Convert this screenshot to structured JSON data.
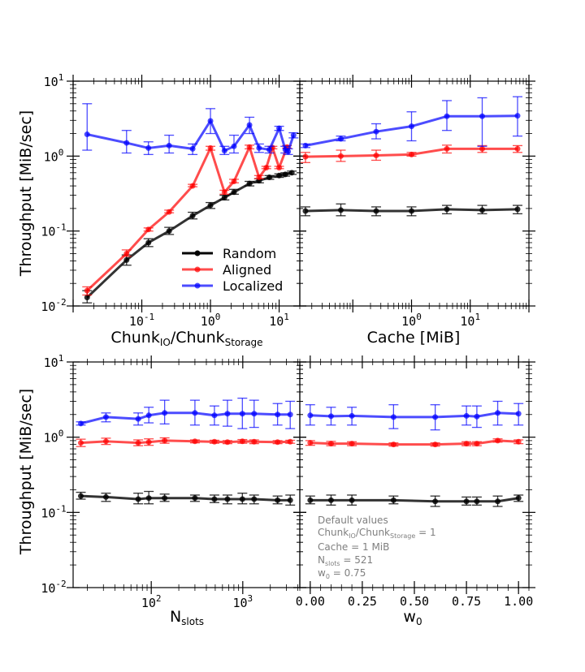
{
  "chart_data": [
    {
      "type": "line",
      "xscale": "log",
      "yscale": "log",
      "xlim": [
        0.01,
        20
      ],
      "ylim": [
        0.01,
        10
      ],
      "xlabel": "Chunk_IO/Chunk_Storage",
      "ylabel": "Throughput [MiB/sec]",
      "xticks": [
        "10^-1",
        "10^0",
        "10^1"
      ],
      "yticks": [
        "10^-2",
        "10^-1",
        "10^0",
        "10^1"
      ],
      "legend": "center-bottom",
      "series": [
        {
          "name": "Random",
          "color": "#000000",
          "points": [
            [
              0.016,
              0.013,
              0.011,
              0.016
            ],
            [
              0.06,
              0.041,
              0.035,
              0.048
            ],
            [
              0.125,
              0.07,
              0.062,
              0.079
            ],
            [
              0.25,
              0.1,
              0.09,
              0.112
            ],
            [
              0.55,
              0.16,
              0.145,
              0.178
            ],
            [
              1.0,
              0.22,
              0.2,
              0.24
            ],
            [
              1.6,
              0.28,
              0.26,
              0.3
            ],
            [
              2.2,
              0.33,
              0.31,
              0.36
            ],
            [
              3.7,
              0.43,
              0.4,
              0.46
            ],
            [
              5.1,
              0.47,
              0.44,
              0.5
            ],
            [
              7.2,
              0.52,
              0.49,
              0.55
            ],
            [
              10.0,
              0.55,
              0.52,
              0.58
            ],
            [
              12.3,
              0.57,
              0.54,
              0.6
            ],
            [
              15.3,
              0.6,
              0.57,
              0.63
            ]
          ]
        },
        {
          "name": "Aligned",
          "color": "#ff0000",
          "points": [
            [
              0.016,
              0.016,
              0.014,
              0.018
            ],
            [
              0.06,
              0.05,
              0.046,
              0.056
            ],
            [
              0.125,
              0.105,
              0.1,
              0.11
            ],
            [
              0.25,
              0.18,
              0.175,
              0.19
            ],
            [
              0.55,
              0.4,
              0.39,
              0.42
            ],
            [
              1.0,
              1.28,
              1.2,
              1.35
            ],
            [
              1.6,
              0.33,
              0.31,
              0.35
            ],
            [
              2.2,
              0.46,
              0.44,
              0.49
            ],
            [
              3.7,
              1.32,
              1.25,
              1.4
            ],
            [
              5.1,
              0.52,
              0.5,
              0.55
            ],
            [
              6.5,
              0.7,
              0.68,
              0.73
            ],
            [
              8.0,
              1.3,
              1.25,
              1.35
            ],
            [
              10.0,
              0.7,
              0.68,
              0.73
            ],
            [
              13.0,
              1.32,
              1.28,
              1.38
            ]
          ]
        },
        {
          "name": "Localized",
          "color": "#0000ff",
          "points": [
            [
              0.016,
              1.95,
              1.2,
              5.0
            ],
            [
              0.06,
              1.5,
              1.1,
              2.2
            ],
            [
              0.125,
              1.28,
              1.05,
              1.55
            ],
            [
              0.25,
              1.38,
              1.1,
              1.9
            ],
            [
              0.55,
              1.25,
              1.05,
              1.45
            ],
            [
              1.0,
              2.95,
              2.0,
              4.3
            ],
            [
              1.6,
              1.18,
              1.05,
              1.35
            ],
            [
              2.2,
              1.35,
              1.1,
              1.9
            ],
            [
              3.7,
              2.6,
              2.0,
              3.3
            ],
            [
              5.1,
              1.28,
              1.12,
              1.45
            ],
            [
              7.2,
              1.22,
              1.1,
              1.35
            ],
            [
              10.0,
              2.35,
              2.2,
              2.5
            ],
            [
              12.3,
              1.22,
              1.1,
              1.35
            ],
            [
              13.5,
              1.15,
              1.05,
              1.25
            ],
            [
              16.2,
              1.9,
              1.75,
              2.05
            ]
          ]
        }
      ]
    },
    {
      "type": "line",
      "xscale": "log",
      "yscale": "log",
      "xlim": [
        0.0125,
        100
      ],
      "ylim": [
        0.01,
        10
      ],
      "xlabel": "Cache [MiB]",
      "xticks": [
        "10^0",
        "10^1"
      ],
      "series": [
        {
          "name": "Random",
          "color": "#000000",
          "points": [
            [
              0.0156,
              0.185,
              0.16,
              0.21
            ],
            [
              0.0625,
              0.19,
              0.16,
              0.23
            ],
            [
              0.25,
              0.185,
              0.16,
              0.21
            ],
            [
              1.0,
              0.185,
              0.16,
              0.21
            ],
            [
              4.0,
              0.195,
              0.17,
              0.22
            ],
            [
              16.0,
              0.19,
              0.17,
              0.22
            ],
            [
              64.0,
              0.195,
              0.17,
              0.22
            ]
          ]
        },
        {
          "name": "Aligned",
          "color": "#ff0000",
          "points": [
            [
              0.0156,
              0.98,
              0.82,
              1.12
            ],
            [
              0.0625,
              1.0,
              0.85,
              1.2
            ],
            [
              0.25,
              1.02,
              0.88,
              1.2
            ],
            [
              1.0,
              1.05,
              1.0,
              1.12
            ],
            [
              4.0,
              1.25,
              1.1,
              1.4
            ],
            [
              16.0,
              1.25,
              1.12,
              1.38
            ],
            [
              64.0,
              1.25,
              1.12,
              1.38
            ]
          ]
        },
        {
          "name": "Localized",
          "color": "#0000ff",
          "points": [
            [
              0.0156,
              1.38,
              1.3,
              1.45
            ],
            [
              0.0625,
              1.7,
              1.6,
              1.85
            ],
            [
              0.25,
              2.12,
              1.7,
              2.7
            ],
            [
              1.0,
              2.5,
              1.6,
              3.9
            ],
            [
              4.0,
              3.4,
              2.2,
              5.5
            ],
            [
              16.0,
              3.4,
              1.35,
              6.0
            ],
            [
              64.0,
              3.45,
              1.85,
              6.2
            ]
          ]
        }
      ]
    },
    {
      "type": "line",
      "xscale": "log",
      "yscale": "log",
      "xlim": [
        14,
        4200
      ],
      "ylim": [
        0.01,
        10
      ],
      "xlabel": "N_slots",
      "ylabel": "Throughput [MiB/sec]",
      "xticks": [
        "10^2",
        "10^3"
      ],
      "yticks": [
        "10^-2",
        "10^-1",
        "10^0",
        "10^1"
      ],
      "series": [
        {
          "name": "Random",
          "color": "#000000",
          "points": [
            [
              17,
              0.165,
              0.15,
              0.185
            ],
            [
              32,
              0.16,
              0.14,
              0.18
            ],
            [
              72,
              0.15,
              0.13,
              0.18
            ],
            [
              94,
              0.155,
              0.13,
              0.19
            ],
            [
              140,
              0.155,
              0.14,
              0.175
            ],
            [
              300,
              0.155,
              0.14,
              0.17
            ],
            [
              490,
              0.15,
              0.135,
              0.17
            ],
            [
              680,
              0.15,
              0.13,
              0.17
            ],
            [
              990,
              0.15,
              0.13,
              0.18
            ],
            [
              1330,
              0.15,
              0.13,
              0.17
            ],
            [
              2400,
              0.145,
              0.13,
              0.165
            ],
            [
              3300,
              0.145,
              0.125,
              0.17
            ]
          ]
        },
        {
          "name": "Aligned",
          "color": "#ff0000",
          "points": [
            [
              17,
              0.84,
              0.75,
              0.94
            ],
            [
              32,
              0.88,
              0.8,
              0.97
            ],
            [
              72,
              0.84,
              0.77,
              0.92
            ],
            [
              94,
              0.86,
              0.78,
              0.95
            ],
            [
              140,
              0.9,
              0.83,
              0.98
            ],
            [
              300,
              0.88,
              0.84,
              0.92
            ],
            [
              490,
              0.87,
              0.83,
              0.91
            ],
            [
              680,
              0.86,
              0.82,
              0.9
            ],
            [
              990,
              0.88,
              0.83,
              0.93
            ],
            [
              1330,
              0.87,
              0.82,
              0.92
            ],
            [
              2400,
              0.86,
              0.82,
              0.9
            ],
            [
              3300,
              0.87,
              0.83,
              0.91
            ]
          ]
        },
        {
          "name": "Localized",
          "color": "#0000ff",
          "points": [
            [
              17,
              1.52,
              1.45,
              1.6
            ],
            [
              32,
              1.85,
              1.6,
              2.1
            ],
            [
              72,
              1.75,
              1.45,
              2.1
            ],
            [
              94,
              1.95,
              1.55,
              2.5
            ],
            [
              140,
              2.1,
              1.5,
              3.1
            ],
            [
              300,
              2.1,
              1.45,
              3.1
            ],
            [
              490,
              1.95,
              1.45,
              2.6
            ],
            [
              680,
              2.05,
              1.4,
              3.1
            ],
            [
              990,
              2.05,
              1.3,
              3.3
            ],
            [
              1330,
              2.05,
              1.35,
              3.1
            ],
            [
              2400,
              2.0,
              1.45,
              2.8
            ],
            [
              3300,
              2.0,
              1.3,
              3.0
            ]
          ]
        }
      ]
    },
    {
      "type": "line",
      "xscale": "linear",
      "yscale": "log",
      "xlim": [
        -0.05,
        1.05
      ],
      "ylim": [
        0.01,
        10
      ],
      "xlabel": "w_0",
      "xticks": [
        "0.00",
        "0.25",
        "0.50",
        "0.75",
        "1.00"
      ],
      "series": [
        {
          "name": "Random",
          "color": "#000000",
          "points": [
            [
              0.0,
              0.145,
              0.13,
              0.165
            ],
            [
              0.1,
              0.145,
              0.125,
              0.17
            ],
            [
              0.2,
              0.145,
              0.125,
              0.17
            ],
            [
              0.4,
              0.145,
              0.13,
              0.165
            ],
            [
              0.6,
              0.14,
              0.12,
              0.165
            ],
            [
              0.75,
              0.14,
              0.125,
              0.16
            ],
            [
              0.8,
              0.14,
              0.125,
              0.16
            ],
            [
              0.9,
              0.14,
              0.12,
              0.165
            ],
            [
              1.0,
              0.155,
              0.14,
              0.17
            ]
          ]
        },
        {
          "name": "Aligned",
          "color": "#ff0000",
          "points": [
            [
              0.0,
              0.84,
              0.78,
              0.9
            ],
            [
              0.1,
              0.82,
              0.77,
              0.88
            ],
            [
              0.2,
              0.82,
              0.77,
              0.87
            ],
            [
              0.4,
              0.8,
              0.76,
              0.84
            ],
            [
              0.6,
              0.8,
              0.76,
              0.84
            ],
            [
              0.75,
              0.82,
              0.77,
              0.87
            ],
            [
              0.8,
              0.82,
              0.77,
              0.87
            ],
            [
              0.9,
              0.9,
              0.86,
              0.95
            ],
            [
              1.0,
              0.87,
              0.82,
              0.92
            ]
          ]
        },
        {
          "name": "Localized",
          "color": "#0000ff",
          "points": [
            [
              0.0,
              1.95,
              1.45,
              2.7
            ],
            [
              0.1,
              1.9,
              1.45,
              2.5
            ],
            [
              0.2,
              1.92,
              1.45,
              2.5
            ],
            [
              0.4,
              1.85,
              1.3,
              2.7
            ],
            [
              0.6,
              1.85,
              1.25,
              2.7
            ],
            [
              0.75,
              1.92,
              1.45,
              2.6
            ],
            [
              0.8,
              1.88,
              1.35,
              2.6
            ],
            [
              0.9,
              2.1,
              1.45,
              3.0
            ],
            [
              1.0,
              2.05,
              1.45,
              2.8
            ]
          ]
        }
      ]
    }
  ],
  "legend_labels": [
    "Random",
    "Aligned",
    "Localized"
  ],
  "default_values_note": {
    "heading": "Default values",
    "chunk_line": "Chunk_IO/Chunk_Storage = 1",
    "cache_line": "Cache = 1 MiB",
    "nslots_line": "N_slots = 521",
    "w0_line": "w_0 = 0.75"
  }
}
